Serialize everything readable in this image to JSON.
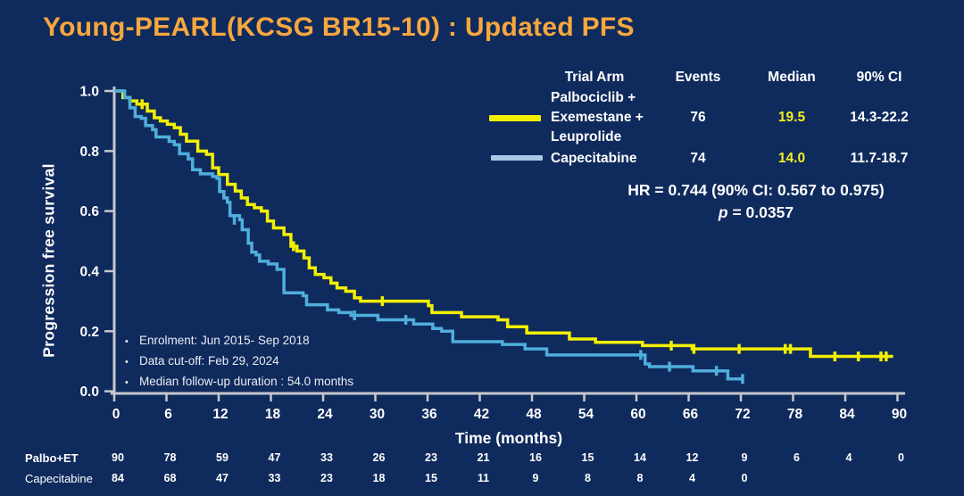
{
  "slide": {
    "title": "Young-PEARL(KCSG BR15-10) : Updated PFS"
  },
  "colors": {
    "background": "#0f2a5c",
    "title": "#f6a73e",
    "palbo_curve": "#f2f000",
    "cape_curve": "#4faedc",
    "cape_swatch": "#a8c8e6",
    "axis": "#c6c8ce",
    "text": "#ffffff",
    "median_value": "#f4ef20"
  },
  "legend": {
    "headers": {
      "trial_arm": "Trial Arm",
      "events": "Events",
      "median": "Median",
      "ci": "90% CI"
    },
    "rows": [
      {
        "arm_lines": [
          "Palbociclib +",
          "Exemestane +",
          "Leuprolide"
        ],
        "arm": "Palbociclib + Exemestane + Leuprolide",
        "events": "76",
        "median": "19.5",
        "ci": "14.3-22.2"
      },
      {
        "arm": "Capecitabine",
        "events": "74",
        "median": "14.0",
        "ci": "11.7-18.7"
      }
    ]
  },
  "stats": {
    "hr_line": "HR = 0.744 (90% CI: 0.567 to 0.975)",
    "p_label": "p",
    "p_value": " = 0.0357"
  },
  "annotations": [
    "Enrolment: Jun 2015- Sep 2018",
    "Data cut-off: Feb 29, 2024",
    "Median follow-up duration : 54.0 months"
  ],
  "axes": {
    "x_label": "Time (months)",
    "y_label": "Progression free survival"
  },
  "chart_data": {
    "type": "line",
    "subtype": "kaplan-meier-step",
    "title": "Young-PEARL(KCSG BR15-10) : Updated PFS",
    "xlabel": "Time (months)",
    "ylabel": "Progression free survival",
    "xlim": [
      0,
      92
    ],
    "ylim": [
      0,
      1.0
    ],
    "xticks": [
      0,
      6,
      12,
      18,
      24,
      30,
      36,
      42,
      48,
      54,
      60,
      66,
      72,
      78,
      84,
      90
    ],
    "yticks": [
      0.0,
      0.2,
      0.4,
      0.6,
      0.8,
      1.0
    ],
    "grid": false,
    "legend_position": "top-right",
    "hr": "HR = 0.744 (90% CI: 0.567 to 0.975)",
    "p_value": 0.0357,
    "series": [
      {
        "name": "Palbociclib + Exemestane + Leuprolide",
        "color": "#f2f000",
        "events": 76,
        "median_months": 19.5,
        "ci90": "14.3-22.2",
        "steps": [
          [
            0,
            1.0
          ],
          [
            1.0,
            0.978
          ],
          [
            1.8,
            0.967
          ],
          [
            2.6,
            0.956
          ],
          [
            3.8,
            0.933
          ],
          [
            4.6,
            0.911
          ],
          [
            5.3,
            0.9
          ],
          [
            6.1,
            0.889
          ],
          [
            6.9,
            0.878
          ],
          [
            7.6,
            0.856
          ],
          [
            8.3,
            0.833
          ],
          [
            9.6,
            0.8
          ],
          [
            10.6,
            0.789
          ],
          [
            11.3,
            0.744
          ],
          [
            12.0,
            0.722
          ],
          [
            13.0,
            0.689
          ],
          [
            13.9,
            0.667
          ],
          [
            14.6,
            0.644
          ],
          [
            15.3,
            0.622
          ],
          [
            16.1,
            0.611
          ],
          [
            16.9,
            0.6
          ],
          [
            17.6,
            0.567
          ],
          [
            18.3,
            0.544
          ],
          [
            19.5,
            0.522
          ],
          [
            20.3,
            0.483
          ],
          [
            21.0,
            0.467
          ],
          [
            21.8,
            0.444
          ],
          [
            22.4,
            0.411
          ],
          [
            23.1,
            0.389
          ],
          [
            24.1,
            0.378
          ],
          [
            24.9,
            0.36
          ],
          [
            25.6,
            0.344
          ],
          [
            26.6,
            0.333
          ],
          [
            27.6,
            0.311
          ],
          [
            28.3,
            0.3
          ],
          [
            36.1,
            0.285
          ],
          [
            36.5,
            0.262
          ],
          [
            39.9,
            0.248
          ],
          [
            44.1,
            0.238
          ],
          [
            45.2,
            0.215
          ],
          [
            47.4,
            0.194
          ],
          [
            52.3,
            0.174
          ],
          [
            55.3,
            0.163
          ],
          [
            60.7,
            0.152
          ],
          [
            66.4,
            0.141
          ],
          [
            80.0,
            0.116
          ],
          [
            89.5,
            0.116
          ]
        ],
        "censors": [
          [
            3.2,
            0.956
          ],
          [
            20.6,
            0.483
          ],
          [
            30.8,
            0.3
          ],
          [
            64.0,
            0.152
          ],
          [
            66.6,
            0.141
          ],
          [
            71.8,
            0.141
          ],
          [
            77.1,
            0.141
          ],
          [
            77.7,
            0.141
          ],
          [
            82.8,
            0.116
          ],
          [
            85.5,
            0.116
          ],
          [
            88.1,
            0.116
          ],
          [
            88.7,
            0.116
          ]
        ]
      },
      {
        "name": "Capecitabine",
        "color": "#4faedc",
        "events": 74,
        "median_months": 14.0,
        "ci90": "11.7-18.7",
        "steps": [
          [
            0,
            1.0
          ],
          [
            1.2,
            0.978
          ],
          [
            1.8,
            0.944
          ],
          [
            2.4,
            0.915
          ],
          [
            3.1,
            0.909
          ],
          [
            3.6,
            0.885
          ],
          [
            4.4,
            0.871
          ],
          [
            4.8,
            0.847
          ],
          [
            6.3,
            0.832
          ],
          [
            6.9,
            0.821
          ],
          [
            7.5,
            0.791
          ],
          [
            8.5,
            0.774
          ],
          [
            9.0,
            0.738
          ],
          [
            9.9,
            0.724
          ],
          [
            11.3,
            0.715
          ],
          [
            11.8,
            0.709
          ],
          [
            12.1,
            0.665
          ],
          [
            12.6,
            0.644
          ],
          [
            13.0,
            0.629
          ],
          [
            13.3,
            0.585
          ],
          [
            14.4,
            0.571
          ],
          [
            14.7,
            0.538
          ],
          [
            15.4,
            0.493
          ],
          [
            15.8,
            0.463
          ],
          [
            16.3,
            0.454
          ],
          [
            16.7,
            0.433
          ],
          [
            17.7,
            0.424
          ],
          [
            18.7,
            0.406
          ],
          [
            19.5,
            0.328
          ],
          [
            21.7,
            0.318
          ],
          [
            22.1,
            0.288
          ],
          [
            24.5,
            0.271
          ],
          [
            25.8,
            0.262
          ],
          [
            27.2,
            0.253
          ],
          [
            30.3,
            0.238
          ],
          [
            34.4,
            0.224
          ],
          [
            36.6,
            0.209
          ],
          [
            37.6,
            0.2
          ],
          [
            38.9,
            0.165
          ],
          [
            44.6,
            0.156
          ],
          [
            47.2,
            0.141
          ],
          [
            49.7,
            0.121
          ],
          [
            61.0,
            0.091
          ],
          [
            61.5,
            0.082
          ],
          [
            66.5,
            0.068
          ],
          [
            70.5,
            0.041
          ],
          [
            72.3,
            0.041
          ]
        ],
        "censors": [
          [
            13.8,
            0.571
          ],
          [
            27.6,
            0.253
          ],
          [
            33.5,
            0.238
          ],
          [
            60.5,
            0.121
          ],
          [
            63.8,
            0.082
          ],
          [
            69.2,
            0.068
          ],
          [
            72.2,
            0.041
          ]
        ]
      }
    ]
  },
  "risk_table": {
    "months": [
      0,
      6,
      12,
      18,
      24,
      30,
      36,
      42,
      48,
      54,
      60,
      66,
      72,
      78,
      84,
      90
    ],
    "rows": [
      {
        "label": "Palbo+ET",
        "counts": [
          90,
          78,
          59,
          47,
          33,
          26,
          23,
          21,
          16,
          15,
          14,
          12,
          9,
          6,
          4,
          0
        ]
      },
      {
        "label": "Capecitabine",
        "counts": [
          84,
          68,
          47,
          33,
          23,
          18,
          15,
          11,
          9,
          8,
          8,
          4,
          0
        ]
      }
    ]
  }
}
